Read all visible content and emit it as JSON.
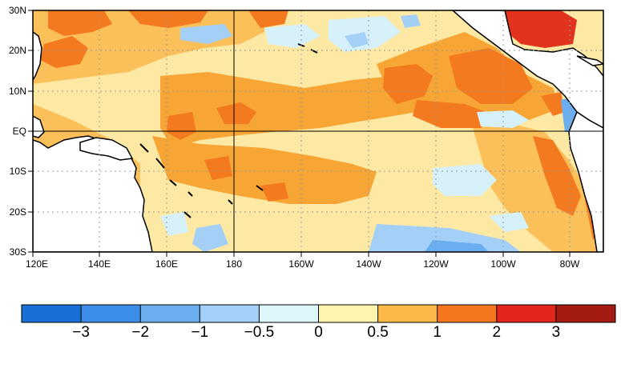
{
  "map": {
    "y_ticks": [
      "30N",
      "20N",
      "10N",
      "EQ",
      "10S",
      "20S",
      "30S"
    ],
    "x_ticks": [
      "120E",
      "140E",
      "160E",
      "180",
      "160W",
      "140W",
      "120W",
      "100W",
      "80W"
    ]
  },
  "colorbar": {
    "labels": [
      "−3",
      "−2",
      "−1",
      "−0.5",
      "0",
      "0.5",
      "1",
      "2",
      "3"
    ],
    "colors": [
      "#1a6fd6",
      "#3d8ee8",
      "#6aaef0",
      "#a4d0f7",
      "#ddf6fb",
      "#fff3b0",
      "#fbb94a",
      "#f6761e",
      "#e0251a",
      "#a31a12"
    ]
  },
  "colors": {
    "land": "#ffffff",
    "ocean_base": "#fde9a4",
    "light_orange": "#fbc05a",
    "orange": "#f7a535",
    "dark_orange": "#f47a1f",
    "red": "#e2331c",
    "light_blue": "#a4d0f7",
    "pale_blue": "#d6f1fa",
    "mid_blue": "#6aaef0"
  }
}
